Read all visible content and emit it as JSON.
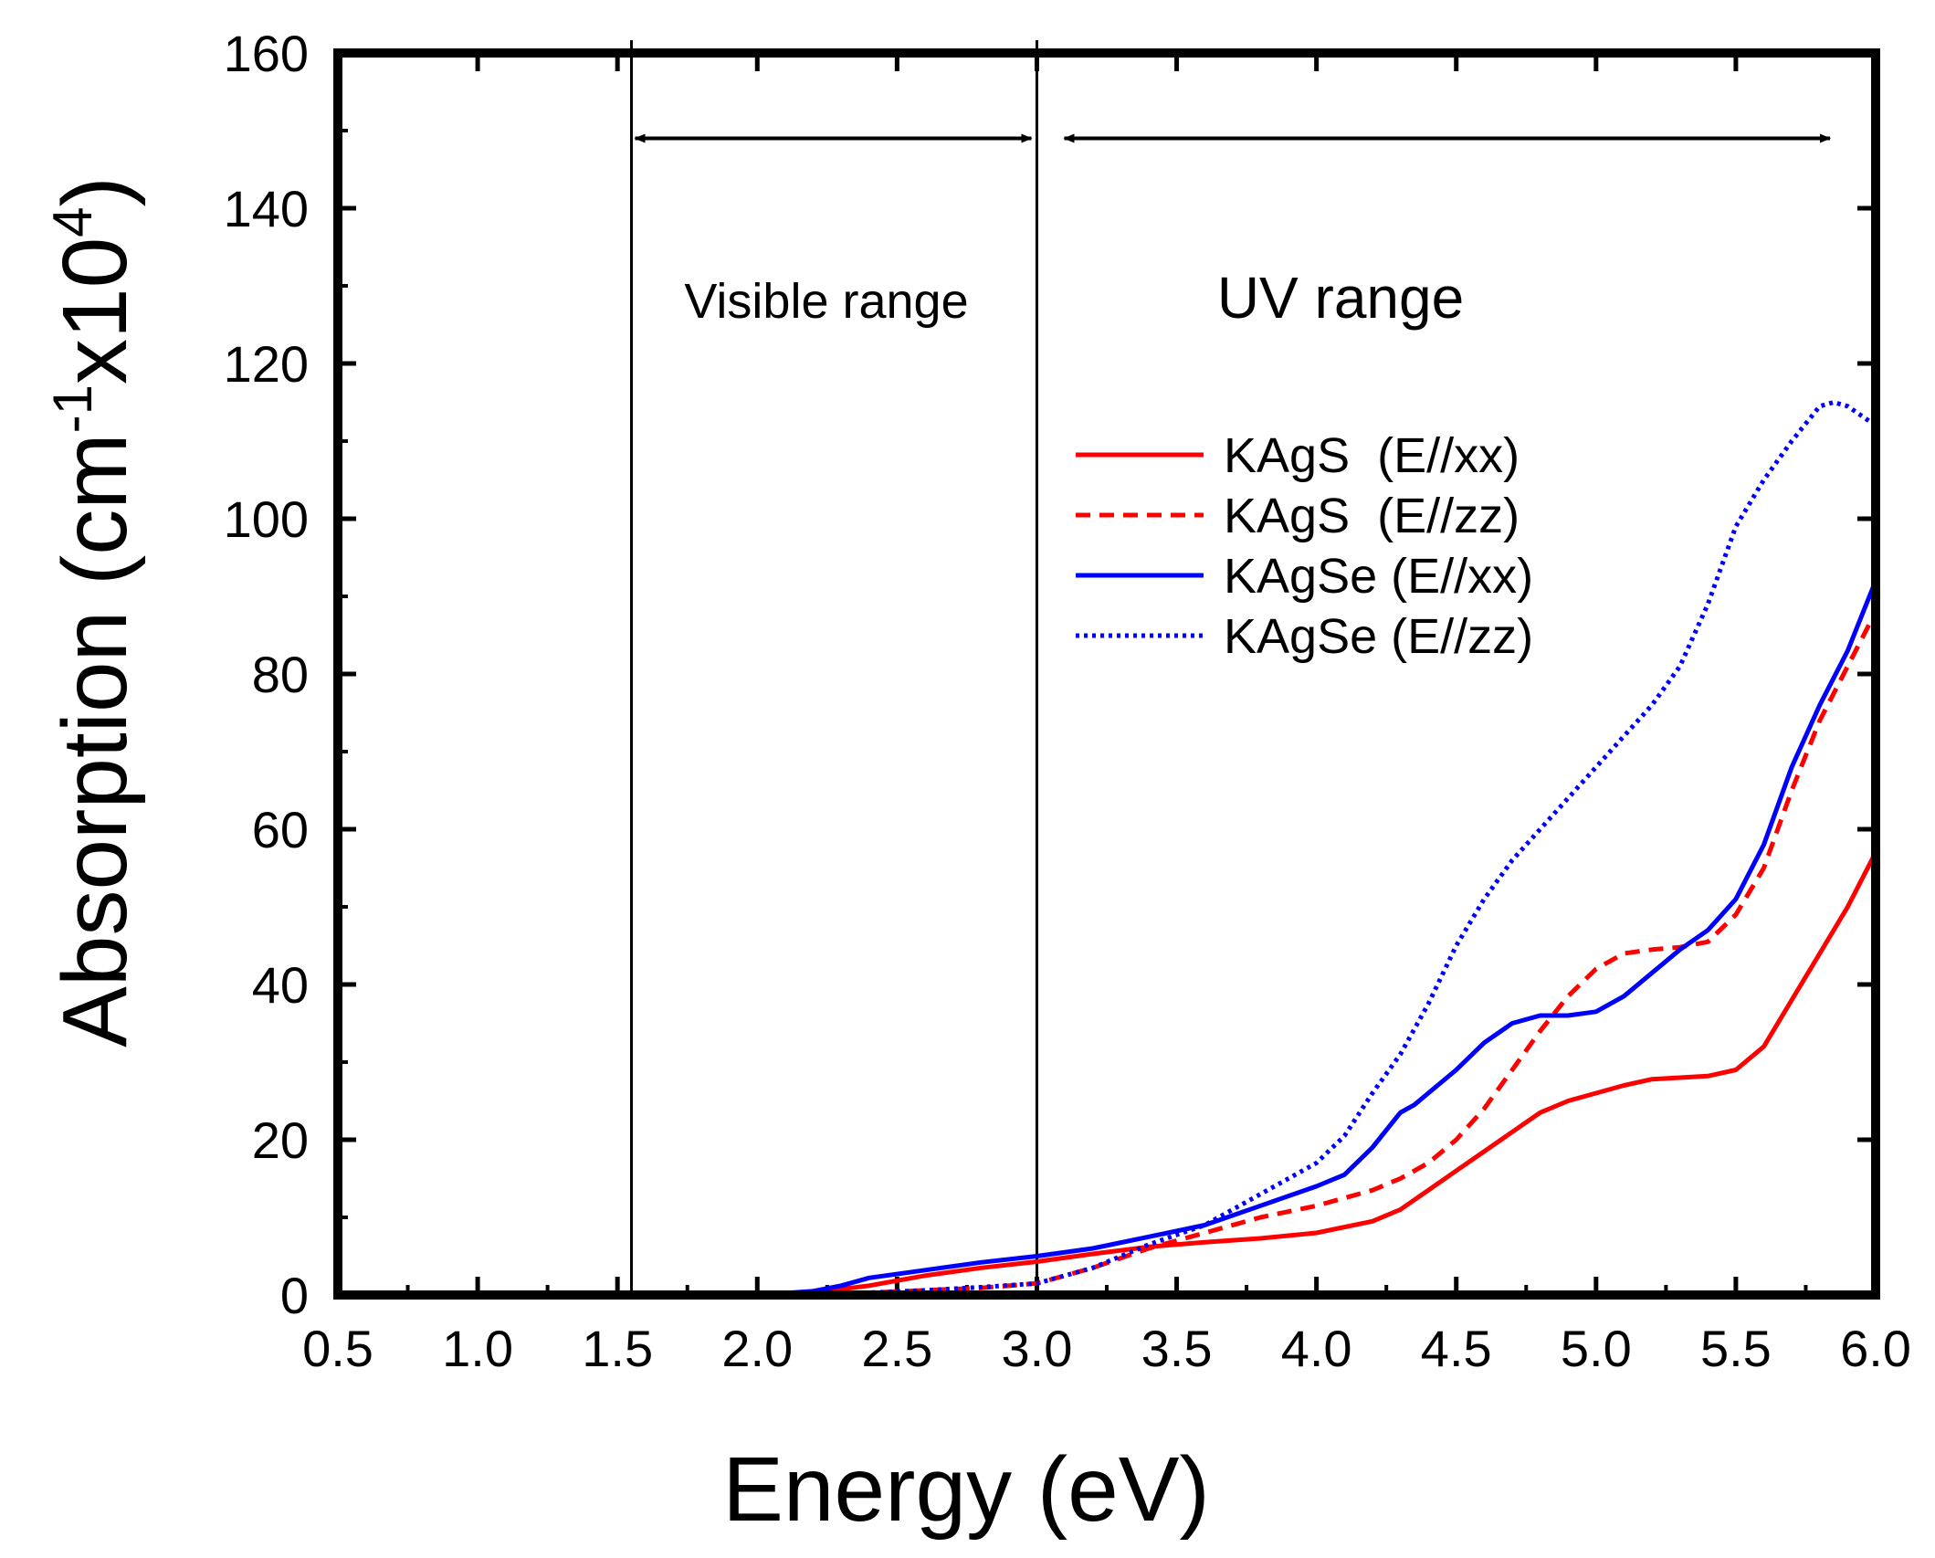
{
  "chart_data": {
    "type": "line",
    "title": "",
    "xlabel": "Energy (eV)",
    "ylabel": {
      "prefix": "Absorption (cm",
      "sup1": "-1",
      "mid": "x10",
      "sup2": "4",
      "suffix": ")"
    },
    "xlim": [
      0.5,
      6.0
    ],
    "ylim": [
      0,
      160
    ],
    "xticks": [
      "0.5",
      "1.0",
      "1.5",
      "2.0",
      "2.5",
      "3.0",
      "3.5",
      "4.0",
      "4.5",
      "5.0",
      "5.5",
      "6.0"
    ],
    "yticks": [
      "0",
      "20",
      "40",
      "60",
      "80",
      "100",
      "120",
      "140",
      "160"
    ],
    "grid": false,
    "legend_position": "upper-right",
    "vlines": [
      1.55,
      3.0
    ],
    "ranges": [
      {
        "label": "Visible range",
        "x_start": 1.55,
        "x_end": 3.0
      },
      {
        "label": "UV range",
        "x_start": 3.0,
        "x_end": 5.85
      }
    ],
    "series": [
      {
        "name": "KAgS  (E//xx)",
        "color": "#ff0000",
        "dash": "solid",
        "x": [
          0.5,
          1.0,
          1.5,
          2.0,
          2.2,
          2.4,
          2.6,
          2.8,
          3.0,
          3.2,
          3.4,
          3.6,
          3.8,
          4.0,
          4.2,
          4.3,
          4.4,
          4.5,
          4.6,
          4.7,
          4.8,
          4.9,
          5.0,
          5.1,
          5.2,
          5.3,
          5.4,
          5.5,
          5.6,
          5.7,
          5.8,
          5.9,
          6.0
        ],
        "y": [
          0,
          0,
          0,
          0,
          0.3,
          1.2,
          2.5,
          3.5,
          4.3,
          5.3,
          6.2,
          6.8,
          7.3,
          8.0,
          9.5,
          11.0,
          13.5,
          16.0,
          18.5,
          21.0,
          23.5,
          25.0,
          26.0,
          27.0,
          27.8,
          28.0,
          28.2,
          29.0,
          32.0,
          38.0,
          44.0,
          50.0,
          57.0
        ]
      },
      {
        "name": "KAgS  (E//zz)",
        "color": "#ff0000",
        "dash": "dashed",
        "x": [
          0.5,
          1.0,
          1.5,
          2.0,
          2.2,
          2.4,
          2.6,
          2.8,
          3.0,
          3.2,
          3.4,
          3.6,
          3.8,
          4.0,
          4.2,
          4.3,
          4.4,
          4.5,
          4.6,
          4.7,
          4.8,
          4.9,
          5.0,
          5.1,
          5.2,
          5.3,
          5.4,
          5.5,
          5.6,
          5.7,
          5.8,
          5.9,
          6.0
        ],
        "y": [
          0,
          0,
          0,
          0,
          0.1,
          0.3,
          0.6,
          0.9,
          1.5,
          3.5,
          6.0,
          8.0,
          10.0,
          11.5,
          13.5,
          15.0,
          17.0,
          20.0,
          24.0,
          29.0,
          34.0,
          38.5,
          42.0,
          44.0,
          44.5,
          44.8,
          45.5,
          49.0,
          55.0,
          65.0,
          74.0,
          81.0,
          88.0
        ]
      },
      {
        "name": "KAgSe (E//xx)",
        "color": "#0000ff",
        "dash": "solid",
        "x": [
          0.5,
          1.0,
          1.5,
          2.0,
          2.2,
          2.3,
          2.4,
          2.6,
          2.8,
          3.0,
          3.2,
          3.4,
          3.6,
          3.8,
          4.0,
          4.1,
          4.2,
          4.3,
          4.35,
          4.4,
          4.5,
          4.6,
          4.7,
          4.8,
          4.9,
          5.0,
          5.1,
          5.2,
          5.3,
          5.4,
          5.5,
          5.6,
          5.7,
          5.8,
          5.9,
          6.0
        ],
        "y": [
          0,
          0,
          0,
          0,
          0.5,
          1.2,
          2.2,
          3.2,
          4.2,
          5.0,
          6.0,
          7.5,
          9.0,
          11.5,
          14.0,
          15.5,
          19.0,
          23.5,
          24.5,
          26.0,
          29.0,
          32.5,
          35.0,
          36.0,
          36.0,
          36.5,
          38.5,
          41.5,
          44.5,
          47.0,
          51.0,
          58.0,
          68.0,
          76.0,
          83.0,
          92.0
        ]
      },
      {
        "name": "KAgSe (E//zz)",
        "color": "#0000ff",
        "dash": "dotted",
        "x": [
          0.5,
          1.0,
          1.5,
          2.0,
          2.2,
          2.4,
          2.6,
          2.8,
          3.0,
          3.2,
          3.4,
          3.6,
          3.8,
          4.0,
          4.1,
          4.2,
          4.3,
          4.4,
          4.5,
          4.6,
          4.7,
          4.8,
          4.9,
          5.0,
          5.1,
          5.2,
          5.3,
          5.4,
          5.5,
          5.6,
          5.7,
          5.8,
          5.85,
          5.9,
          6.0
        ],
        "y": [
          0,
          0,
          0,
          0,
          0.1,
          0.3,
          0.6,
          1.0,
          1.5,
          3.5,
          6.5,
          9.0,
          13.0,
          17.0,
          20.5,
          26.0,
          31.0,
          37.5,
          45.0,
          51.0,
          56.0,
          60.0,
          64.0,
          68.0,
          72.0,
          76.0,
          81.0,
          89.0,
          99.0,
          105.0,
          110.0,
          114.5,
          115.0,
          114.5,
          112.0
        ]
      }
    ]
  }
}
